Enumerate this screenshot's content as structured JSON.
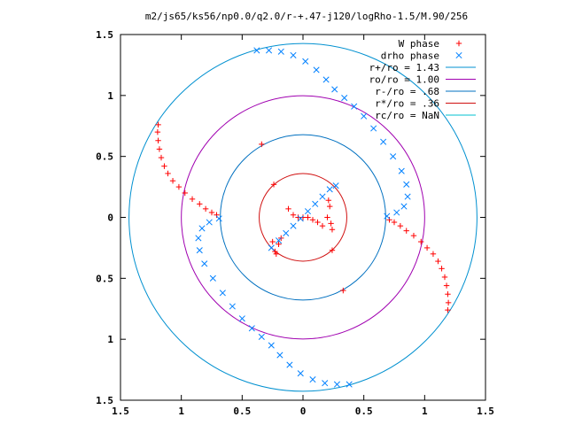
{
  "chart_data": {
    "type": "scatter",
    "title": "m2/js65/ks56/np0.0/q2.0/r-+.47-j120/logRho-1.5/M.90/256",
    "xlabel": "",
    "ylabel": "",
    "xlim": [
      -1.5,
      1.5
    ],
    "ylim": [
      -1.5,
      1.5
    ],
    "x_ticks": [
      -1.5,
      -1,
      -0.5,
      0,
      0.5,
      1,
      1.5
    ],
    "x_tick_labels": [
      "1.5",
      "1",
      "0.5",
      "0",
      "0.5",
      "1",
      "1.5"
    ],
    "y_ticks": [
      1.5,
      1,
      0.5,
      0,
      -0.5,
      -1,
      -1.5
    ],
    "y_tick_labels": [
      "1.5",
      "1",
      "0.5",
      "0",
      "0.5",
      "1",
      "1.5"
    ],
    "grid": false,
    "legend_position": "top-right",
    "legend": [
      {
        "label": "W phase",
        "kind": "point",
        "marker": "plus",
        "color": "#ff0000"
      },
      {
        "label": "drho phase",
        "kind": "point",
        "marker": "cross",
        "color": "#0080ff"
      },
      {
        "label": "r+/ro = 1.43",
        "kind": "line",
        "color": "#0090d0"
      },
      {
        "label": "ro/ro = 1.00",
        "kind": "line",
        "color": "#a000b0"
      },
      {
        "label": "r-/ro = .68",
        "kind": "line",
        "color": "#0070c0"
      },
      {
        "label": "r*/ro = .36",
        "kind": "line",
        "color": "#d01010"
      },
      {
        "label": "rc/ro = NaN",
        "kind": "line",
        "color": "#00c0d0"
      }
    ],
    "circles": [
      {
        "r": 1.43,
        "color": "#0090d0"
      },
      {
        "r": 1.0,
        "color": "#a000b0"
      },
      {
        "r": 0.68,
        "color": "#0070c0"
      },
      {
        "r": 0.36,
        "color": "#d01010"
      }
    ],
    "series": [
      {
        "name": "W phase",
        "color": "#ff0000",
        "marker": "plus",
        "points": [
          [
            -1.19,
            0.76
          ],
          [
            -1.195,
            0.7
          ],
          [
            -1.19,
            0.63
          ],
          [
            -1.18,
            0.56
          ],
          [
            -1.165,
            0.49
          ],
          [
            -1.14,
            0.42
          ],
          [
            -1.11,
            0.36
          ],
          [
            -1.07,
            0.3
          ],
          [
            -1.02,
            0.25
          ],
          [
            -0.97,
            0.2
          ],
          [
            -0.91,
            0.15
          ],
          [
            -0.85,
            0.11
          ],
          [
            -0.8,
            0.07
          ],
          [
            -0.75,
            0.04
          ],
          [
            -0.71,
            0.02
          ],
          [
            1.19,
            -0.76
          ],
          [
            1.195,
            -0.7
          ],
          [
            1.19,
            -0.63
          ],
          [
            1.18,
            -0.56
          ],
          [
            1.165,
            -0.49
          ],
          [
            1.14,
            -0.42
          ],
          [
            1.11,
            -0.36
          ],
          [
            1.07,
            -0.3
          ],
          [
            1.02,
            -0.25
          ],
          [
            0.97,
            -0.2
          ],
          [
            0.91,
            -0.15
          ],
          [
            0.85,
            -0.11
          ],
          [
            0.8,
            -0.07
          ],
          [
            0.75,
            -0.04
          ],
          [
            0.71,
            -0.02
          ],
          [
            -0.34,
            0.6
          ],
          [
            0.33,
            -0.6
          ],
          [
            -0.24,
            0.27
          ],
          [
            0.24,
            -0.27
          ],
          [
            -0.23,
            -0.28
          ],
          [
            0.22,
            0.09
          ],
          [
            0.23,
            -0.05
          ],
          [
            0.24,
            -0.1
          ],
          [
            0.21,
            0.14
          ],
          [
            -0.18,
            -0.17
          ],
          [
            -0.2,
            -0.22
          ],
          [
            -0.22,
            -0.3
          ],
          [
            -0.25,
            -0.2
          ],
          [
            -0.12,
            0.07
          ],
          [
            -0.08,
            0.02
          ],
          [
            -0.04,
            0.0
          ],
          [
            0.0,
            0.0
          ],
          [
            0.04,
            0.0
          ],
          [
            0.08,
            -0.02
          ],
          [
            0.12,
            -0.04
          ],
          [
            0.16,
            -0.07
          ],
          [
            0.2,
            0.0
          ]
        ]
      },
      {
        "name": "drho phase",
        "color": "#0080ff",
        "marker": "cross",
        "points": [
          [
            -0.38,
            1.37
          ],
          [
            -0.28,
            1.37
          ],
          [
            -0.18,
            1.36
          ],
          [
            -0.08,
            1.33
          ],
          [
            0.02,
            1.28
          ],
          [
            0.11,
            1.21
          ],
          [
            0.19,
            1.13
          ],
          [
            0.26,
            1.05
          ],
          [
            0.34,
            0.98
          ],
          [
            0.42,
            0.91
          ],
          [
            0.5,
            0.83
          ],
          [
            0.58,
            0.73
          ],
          [
            0.66,
            0.62
          ],
          [
            0.74,
            0.5
          ],
          [
            0.81,
            0.38
          ],
          [
            0.85,
            0.27
          ],
          [
            0.86,
            0.17
          ],
          [
            0.83,
            0.09
          ],
          [
            0.77,
            0.04
          ],
          [
            0.69,
            0.01
          ],
          [
            0.38,
            -1.37
          ],
          [
            0.28,
            -1.37
          ],
          [
            0.18,
            -1.36
          ],
          [
            0.08,
            -1.33
          ],
          [
            -0.02,
            -1.28
          ],
          [
            -0.11,
            -1.21
          ],
          [
            -0.19,
            -1.13
          ],
          [
            -0.26,
            -1.05
          ],
          [
            -0.34,
            -0.98
          ],
          [
            -0.42,
            -0.91
          ],
          [
            -0.5,
            -0.83
          ],
          [
            -0.58,
            -0.73
          ],
          [
            -0.66,
            -0.62
          ],
          [
            -0.74,
            -0.5
          ],
          [
            -0.81,
            -0.38
          ],
          [
            -0.85,
            -0.27
          ],
          [
            -0.86,
            -0.17
          ],
          [
            -0.83,
            -0.09
          ],
          [
            -0.77,
            -0.04
          ],
          [
            -0.69,
            -0.01
          ],
          [
            -0.26,
            -0.25
          ],
          [
            -0.2,
            -0.19
          ],
          [
            -0.14,
            -0.13
          ],
          [
            -0.08,
            -0.07
          ],
          [
            -0.02,
            -0.01
          ],
          [
            0.04,
            0.05
          ],
          [
            0.1,
            0.11
          ],
          [
            0.16,
            0.17
          ],
          [
            0.22,
            0.23
          ],
          [
            0.27,
            0.26
          ]
        ]
      }
    ]
  }
}
